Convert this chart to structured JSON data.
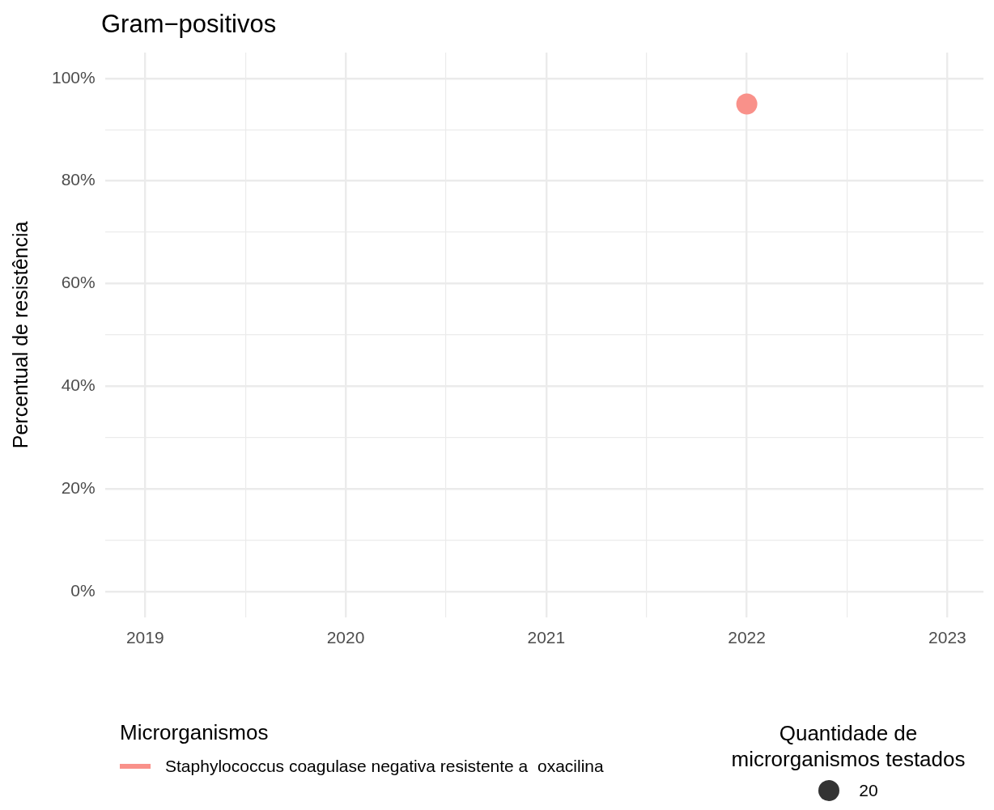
{
  "chart_data": {
    "type": "bubble",
    "title": "Gram−positivos",
    "ylabel": "Percentual de resistência",
    "legend_title": "Microrganismos",
    "annotations": [
      "Quantidade de\nmicrorganismos testados"
    ],
    "xlim": [
      2018.8,
      2023.18
    ],
    "xticks": [
      2019,
      {
        "value": 2019.5,
        "label": null
      },
      2020,
      {
        "value": 2020.5,
        "label": null
      },
      2021,
      {
        "value": 2021.5,
        "label": null
      },
      2022,
      {
        "value": 2022.5,
        "label": null
      },
      2023
    ],
    "ylim": [
      -5,
      105
    ],
    "yticks": [
      {
        "value": 0,
        "label": "0%"
      },
      {
        "value": 10,
        "label": null
      },
      {
        "value": 20,
        "label": "20%"
      },
      {
        "value": 30,
        "label": null
      },
      {
        "value": 40,
        "label": "40%"
      },
      {
        "value": 50,
        "label": null
      },
      {
        "value": 60,
        "label": "60%"
      },
      {
        "value": 70,
        "label": null
      },
      {
        "value": 80,
        "label": "80%"
      },
      {
        "value": 90,
        "label": null
      },
      {
        "value": 100,
        "label": "100%"
      }
    ],
    "grid": true,
    "legend": "bottom",
    "marker": "circle",
    "size_legend": [
      20
    ],
    "series": [
      {
        "name": "Staphylococcus coagulase negativa resistente a  oxacilina",
        "color": "#f9918a",
        "x": [
          2022
        ],
        "values": [
          95
        ],
        "sizes": [
          20
        ]
      }
    ]
  }
}
